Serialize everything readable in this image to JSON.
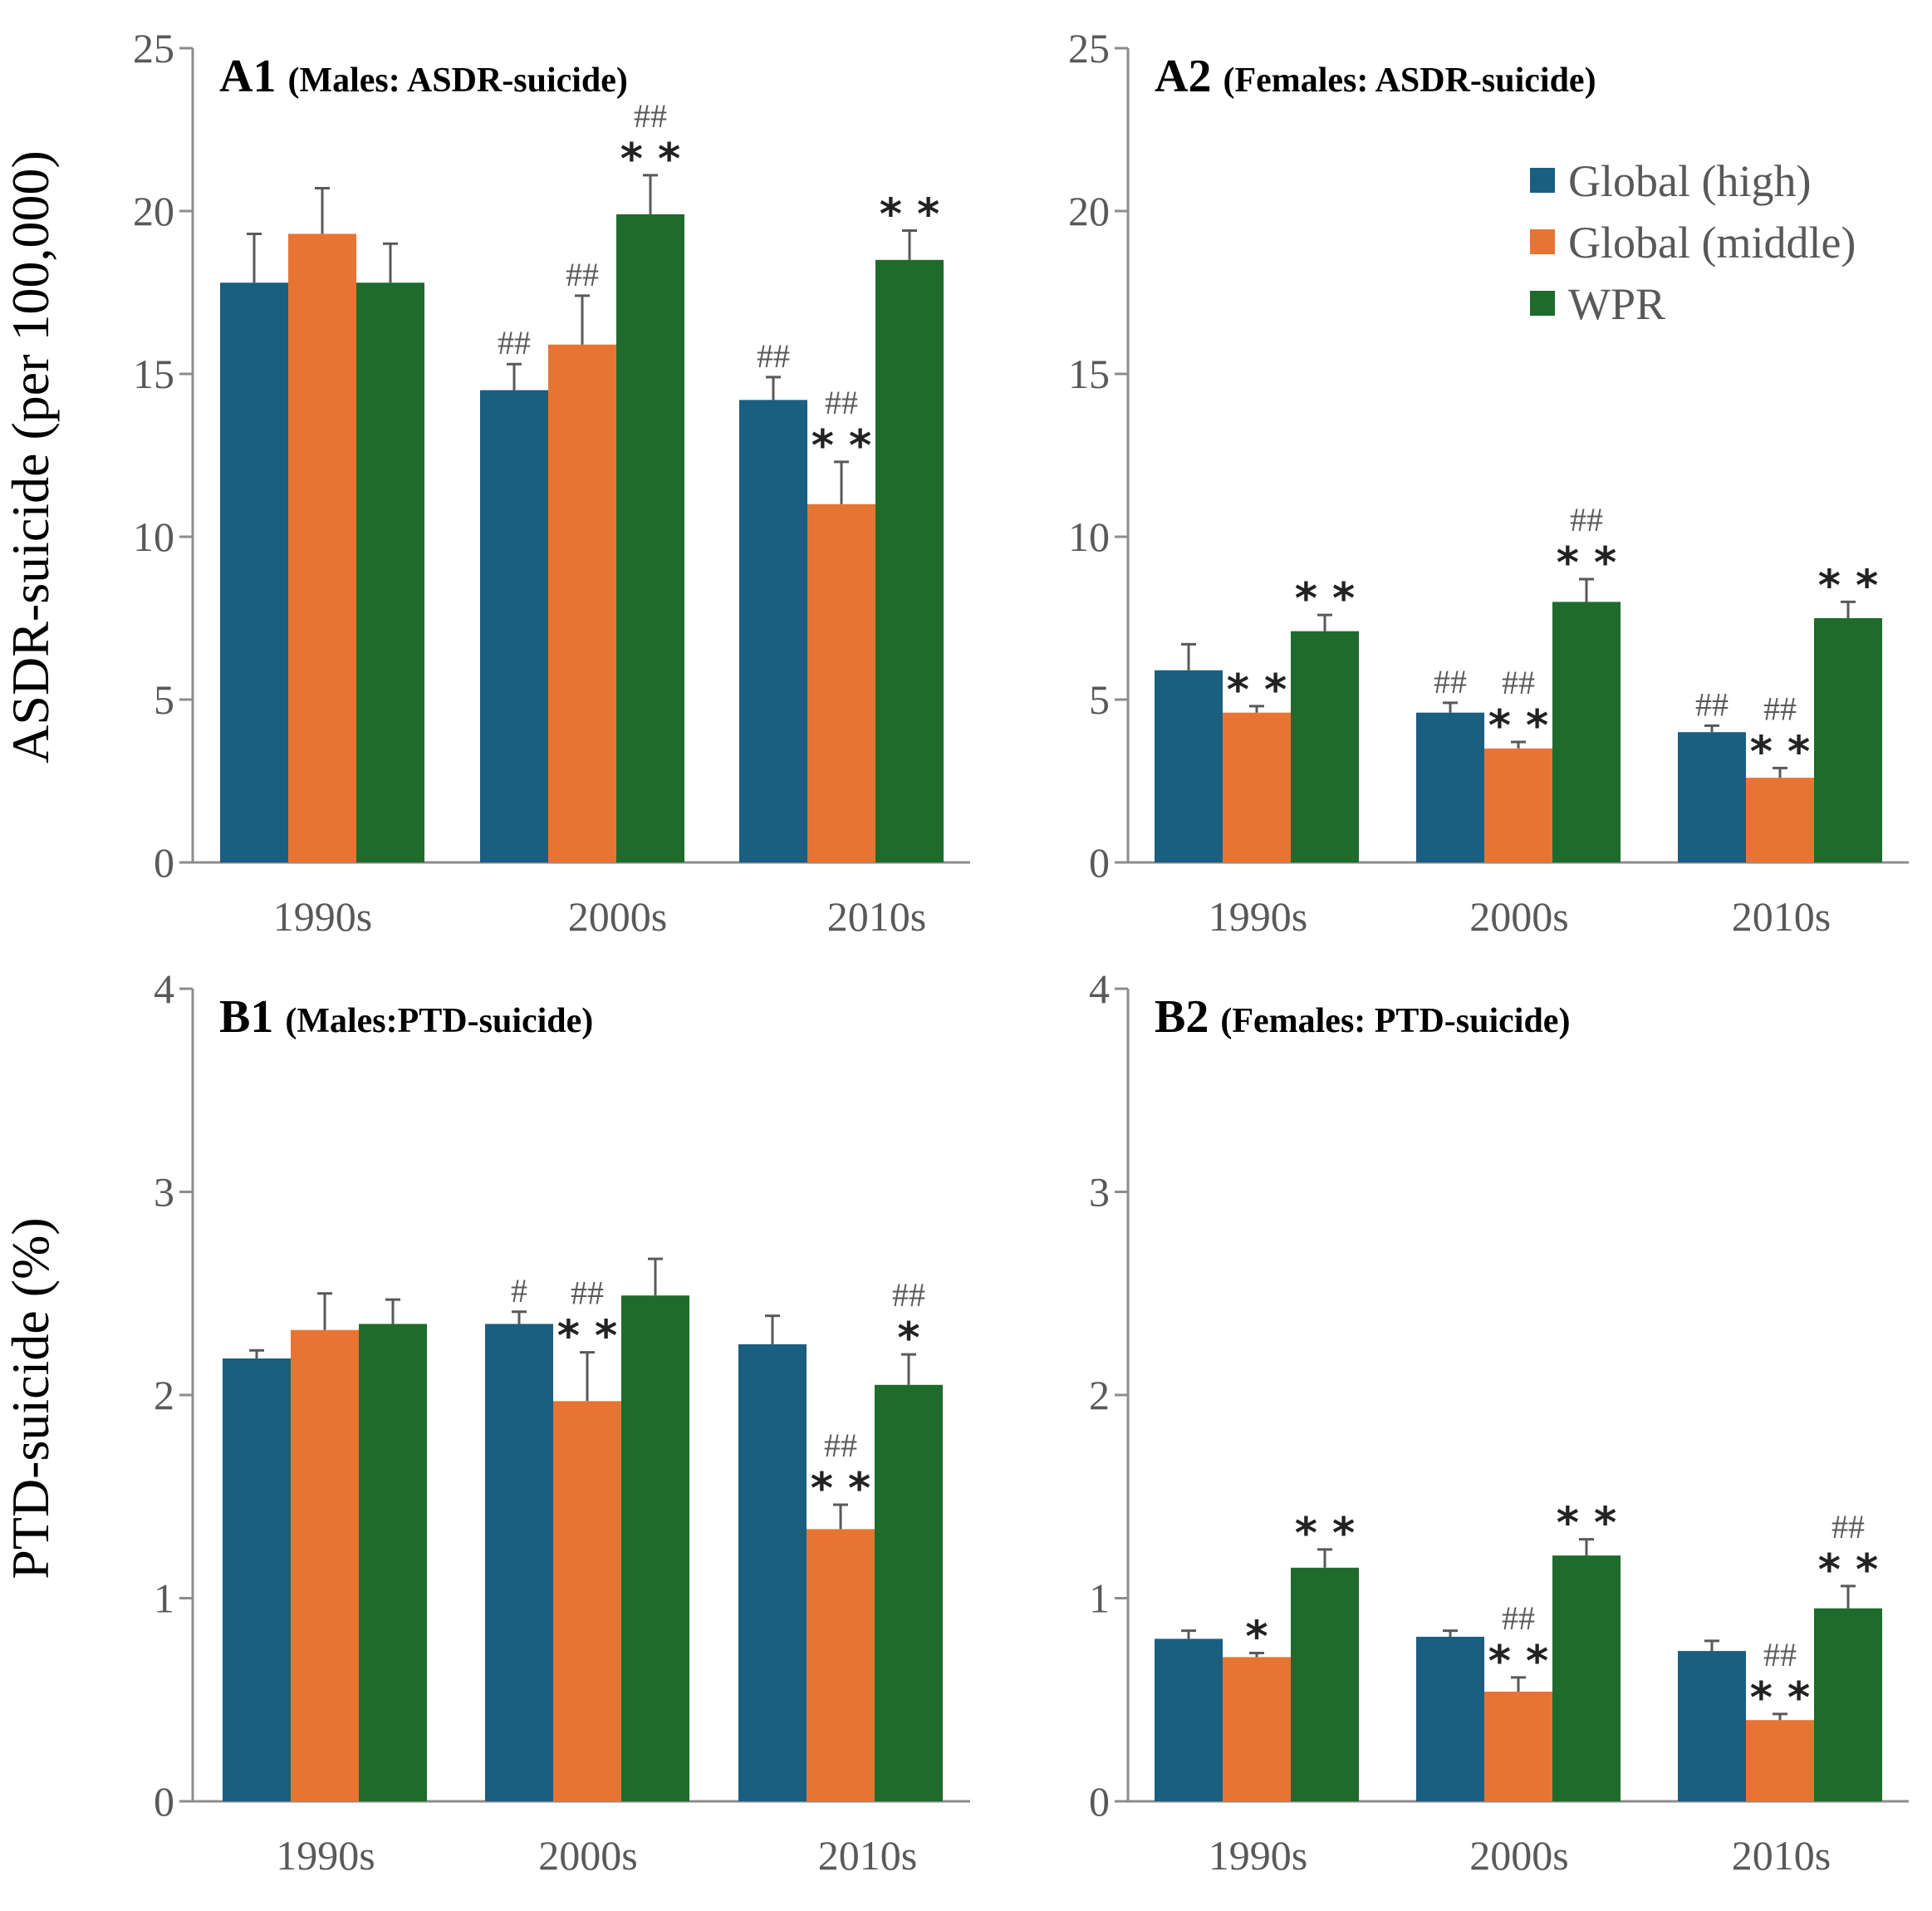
{
  "legend": {
    "series": [
      {
        "name": "Global (high)",
        "color": "#1a5e80"
      },
      {
        "name": "Global (middle)",
        "color": "#e87434"
      },
      {
        "name": "WPR",
        "color": "#1e6b2c"
      }
    ]
  },
  "y_labels": {
    "top": "ASDR-suicide (per 100,000)",
    "bottom": "PTD-suicide (%)"
  },
  "chart_data": [
    {
      "id": "A1",
      "type": "bar",
      "title_main": "A1",
      "title_sub": "(Males: ASDR-suicide)",
      "categories": [
        "1990s",
        "2000s",
        "2010s"
      ],
      "ylim": [
        0,
        25
      ],
      "yticks": [
        "0",
        "5",
        "10",
        "15",
        "20",
        "25"
      ],
      "series": [
        {
          "name": "Global (high)",
          "values": [
            17.8,
            14.5,
            14.2
          ],
          "errors": [
            1.5,
            0.8,
            0.7
          ]
        },
        {
          "name": "Global (middle)",
          "values": [
            19.3,
            15.9,
            11.0
          ],
          "errors": [
            1.4,
            1.5,
            1.3
          ]
        },
        {
          "name": "WPR",
          "values": [
            17.8,
            19.9,
            18.5
          ],
          "errors": [
            1.2,
            1.2,
            0.9
          ]
        }
      ],
      "annotations": [
        {
          "cat": 1,
          "series": 0,
          "hash": "##",
          "star": ""
        },
        {
          "cat": 1,
          "series": 1,
          "hash": "##",
          "star": ""
        },
        {
          "cat": 1,
          "series": 2,
          "hash": "##",
          "star": "**"
        },
        {
          "cat": 2,
          "series": 0,
          "hash": "##",
          "star": ""
        },
        {
          "cat": 2,
          "series": 1,
          "hash": "##",
          "star": "**"
        },
        {
          "cat": 2,
          "series": 2,
          "hash": "",
          "star": "**"
        }
      ]
    },
    {
      "id": "A2",
      "type": "bar",
      "title_main": "A2",
      "title_sub": "(Females: ASDR-suicide)",
      "categories": [
        "1990s",
        "2000s",
        "2010s"
      ],
      "ylim": [
        0,
        25
      ],
      "yticks": [
        "0",
        "5",
        "10",
        "15",
        "20",
        "25"
      ],
      "series": [
        {
          "name": "Global (high)",
          "values": [
            5.9,
            4.6,
            4.0
          ],
          "errors": [
            0.8,
            0.3,
            0.2
          ]
        },
        {
          "name": "Global (middle)",
          "values": [
            4.6,
            3.5,
            2.6
          ],
          "errors": [
            0.2,
            0.2,
            0.3
          ]
        },
        {
          "name": "WPR",
          "values": [
            7.1,
            8.0,
            7.5
          ],
          "errors": [
            0.5,
            0.7,
            0.5
          ]
        }
      ],
      "annotations": [
        {
          "cat": 0,
          "series": 1,
          "hash": "",
          "star": "**"
        },
        {
          "cat": 0,
          "series": 2,
          "hash": "",
          "star": "**"
        },
        {
          "cat": 1,
          "series": 0,
          "hash": "##",
          "star": ""
        },
        {
          "cat": 1,
          "series": 1,
          "hash": "##",
          "star": "**"
        },
        {
          "cat": 1,
          "series": 2,
          "hash": "##",
          "star": "**"
        },
        {
          "cat": 2,
          "series": 0,
          "hash": "##",
          "star": ""
        },
        {
          "cat": 2,
          "series": 1,
          "hash": "##",
          "star": "**"
        },
        {
          "cat": 2,
          "series": 2,
          "hash": "",
          "star": "**"
        }
      ]
    },
    {
      "id": "B1",
      "type": "bar",
      "title_main": "B1",
      "title_sub": "(Males:PTD-suicide)",
      "categories": [
        "1990s",
        "2000s",
        "2010s"
      ],
      "ylim": [
        0,
        4
      ],
      "yticks": [
        "0",
        "1",
        "2",
        "3",
        "4"
      ],
      "series": [
        {
          "name": "Global (high)",
          "values": [
            2.18,
            2.35,
            2.25
          ],
          "errors": [
            0.04,
            0.06,
            0.14
          ]
        },
        {
          "name": "Global (middle)",
          "values": [
            2.32,
            1.97,
            1.34
          ],
          "errors": [
            0.18,
            0.24,
            0.12
          ]
        },
        {
          "name": "WPR",
          "values": [
            2.35,
            2.49,
            2.05
          ],
          "errors": [
            0.12,
            0.18,
            0.15
          ]
        }
      ],
      "annotations": [
        {
          "cat": 1,
          "series": 0,
          "hash": "#",
          "star": ""
        },
        {
          "cat": 1,
          "series": 1,
          "hash": "##",
          "star": "**"
        },
        {
          "cat": 2,
          "series": 1,
          "hash": "##",
          "star": "**"
        },
        {
          "cat": 2,
          "series": 2,
          "hash": "##",
          "star": "*"
        }
      ]
    },
    {
      "id": "B2",
      "type": "bar",
      "title_main": "B2",
      "title_sub": "(Females: PTD-suicide)",
      "categories": [
        "1990s",
        "2000s",
        "2010s"
      ],
      "ylim": [
        0,
        4
      ],
      "yticks": [
        "0",
        "1",
        "2",
        "3",
        "4"
      ],
      "series": [
        {
          "name": "Global (high)",
          "values": [
            0.8,
            0.81,
            0.74
          ],
          "errors": [
            0.04,
            0.03,
            0.05
          ]
        },
        {
          "name": "Global (middle)",
          "values": [
            0.71,
            0.54,
            0.4
          ],
          "errors": [
            0.02,
            0.07,
            0.03
          ]
        },
        {
          "name": "WPR",
          "values": [
            1.15,
            1.21,
            0.95
          ],
          "errors": [
            0.09,
            0.08,
            0.11
          ]
        }
      ],
      "annotations": [
        {
          "cat": 0,
          "series": 1,
          "hash": "",
          "star": "*"
        },
        {
          "cat": 0,
          "series": 2,
          "hash": "",
          "star": "**"
        },
        {
          "cat": 1,
          "series": 1,
          "hash": "##",
          "star": "**"
        },
        {
          "cat": 1,
          "series": 2,
          "hash": "",
          "star": "**"
        },
        {
          "cat": 2,
          "series": 1,
          "hash": "##",
          "star": "**"
        },
        {
          "cat": 2,
          "series": 2,
          "hash": "##",
          "star": "**"
        }
      ]
    }
  ]
}
